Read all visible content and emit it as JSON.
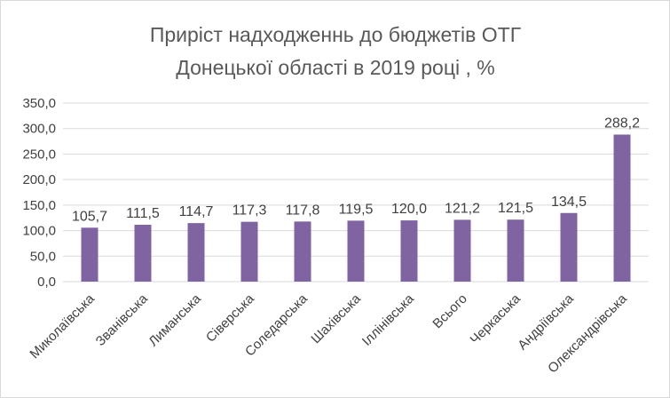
{
  "chart_data": {
    "type": "bar",
    "title": [
      "Приріст надходженнь до бюджетів ОТГ",
      "Донецької області в 2019 році , %"
    ],
    "categories": [
      "Миколаївська",
      "Званівська",
      "Лиманська",
      "Сіверська",
      "Соледарська",
      "Шахівська",
      "Іллінівська",
      "Всього",
      "Черкаська",
      "Андріївська",
      "Олександрівська"
    ],
    "values": [
      105.7,
      111.5,
      114.7,
      117.3,
      117.8,
      119.5,
      120.0,
      121.2,
      121.5,
      134.5,
      288.2
    ],
    "data_labels": [
      "105,7",
      "111,5",
      "114,7",
      "117,3",
      "117,8",
      "119,5",
      "120,0",
      "121,2",
      "121,5",
      "134,5",
      "288,2"
    ],
    "yticks": [
      0,
      50,
      100,
      150,
      200,
      250,
      300,
      350
    ],
    "ytick_labels": [
      "0,0",
      "50,0",
      "100,0",
      "150,0",
      "200,0",
      "250,0",
      "300,0",
      "350,0"
    ],
    "ylim": [
      0,
      350
    ],
    "xlabel": "",
    "ylabel": "",
    "grid": true,
    "legend": "none",
    "bar_color": "#8064a2",
    "grid_color": "#d9d9d9",
    "text_color": "#404040",
    "title_color": "#595959"
  }
}
